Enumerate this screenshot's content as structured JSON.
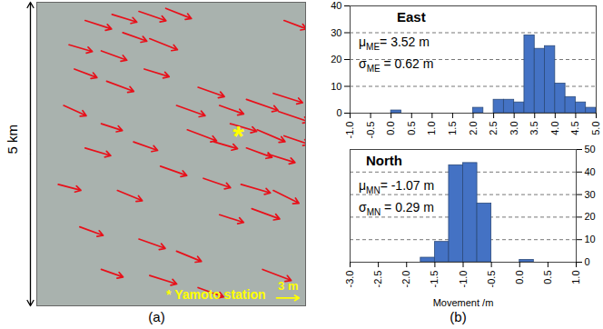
{
  "chart_data": [
    {
      "type": "vector",
      "caption": "(a)",
      "xlim": [
        0,
        5
      ],
      "ylim": [
        0,
        5
      ],
      "tick_labels": false,
      "color": "#e8101a",
      "scale_bar": {
        "label": "5 km",
        "value": 5
      },
      "arrow_key": {
        "label": "3 m",
        "value": 3
      },
      "station": {
        "marker": "*",
        "x": 3.75,
        "y": 2.9,
        "label": "* Yamoto station",
        "color": "#ffff00"
      },
      "x": [
        0.9,
        1.4,
        1.9,
        2.4,
        1.6,
        0.6,
        1.2,
        2.1,
        4.6,
        0.7,
        1.3,
        2.0,
        3.0,
        2.6,
        3.4,
        3.9,
        4.4,
        4.5,
        3.6,
        4.1,
        4.6,
        3.3,
        3.9,
        4.3,
        2.8,
        0.5,
        1.2,
        0.9,
        1.8,
        2.3,
        0.4,
        1.5,
        3.1,
        3.8,
        4.4,
        4.0,
        3.4,
        0.8,
        1.9,
        2.6,
        1.2,
        2.1,
        3.0,
        4.2
      ],
      "y": [
        4.7,
        4.8,
        4.85,
        4.9,
        4.5,
        4.3,
        4.2,
        4.4,
        4.7,
        3.9,
        3.7,
        3.9,
        3.6,
        3.3,
        3.3,
        3.4,
        3.5,
        3.2,
        3.0,
        2.9,
        2.8,
        2.7,
        2.6,
        2.5,
        2.9,
        3.3,
        3.0,
        2.6,
        2.7,
        2.3,
        2.0,
        1.9,
        2.1,
        2.0,
        1.9,
        1.6,
        1.5,
        1.3,
        1.1,
        0.9,
        0.6,
        0.5,
        0.3,
        0.6
      ],
      "east": [
        3.5,
        3.3,
        3.6,
        3.4,
        3.2,
        3.1,
        3.4,
        3.7,
        3.0,
        3.0,
        3.6,
        3.3,
        3.5,
        3.8,
        3.2,
        4.2,
        3.9,
        4.0,
        3.5,
        3.7,
        3.3,
        3.1,
        3.4,
        3.6,
        3.9,
        3.0,
        2.8,
        3.4,
        3.2,
        3.5,
        3.0,
        3.3,
        3.6,
        3.9,
        3.4,
        3.7,
        3.2,
        3.1,
        3.5,
        3.3,
        2.9,
        3.6,
        3.4,
        3.8
      ],
      "north": [
        -1.0,
        -0.9,
        -1.1,
        -1.2,
        -1.0,
        -0.8,
        -1.1,
        -1.3,
        -1.0,
        -1.0,
        -1.2,
        -0.9,
        -1.1,
        -1.2,
        -1.0,
        -1.3,
        -1.1,
        -1.2,
        -0.9,
        -1.4,
        -1.0,
        -0.8,
        -1.1,
        -1.0,
        -1.3,
        -1.2,
        -0.8,
        -0.9,
        -1.0,
        -1.1,
        -0.7,
        -1.2,
        -1.1,
        -1.0,
        -1.5,
        -1.2,
        -0.9,
        -1.0,
        -1.1,
        -1.2,
        -0.9,
        -1.0,
        -1.1,
        -1.3
      ]
    },
    {
      "type": "histogram",
      "title": "East",
      "color": "#4472c4",
      "grid": true,
      "stats": [
        {
          "symbol": "μ",
          "subscript": "ME",
          "text": "= 3.52 m"
        },
        {
          "symbol": "σ",
          "subscript": "ME",
          "text": " = 0.62 m"
        }
      ],
      "bins": [
        -1,
        -0.75,
        -0.5,
        -0.25,
        0,
        0.25,
        0.5,
        0.75,
        1,
        1.25,
        1.5,
        1.75,
        2,
        2.25,
        2.5,
        2.75,
        3,
        3.25,
        3.5,
        3.75,
        4,
        4.25,
        4.5,
        4.75,
        5
      ],
      "values": [
        0,
        0,
        0,
        0,
        1,
        0,
        0,
        0,
        0,
        0,
        0,
        0,
        2,
        0,
        5,
        5,
        4,
        29,
        24,
        25,
        11,
        6,
        4,
        2
      ],
      "xlim": [
        -1,
        5
      ],
      "xticks": [
        {
          "value": -1,
          "label": "-1.0"
        },
        {
          "value": -0.5,
          "label": "-0.5"
        },
        {
          "value": 0,
          "label": "0.0"
        },
        {
          "value": 0.5,
          "label": "0.5"
        },
        {
          "value": 1,
          "label": "1.0"
        },
        {
          "value": 1.5,
          "label": "1.5"
        },
        {
          "value": 2,
          "label": "2.0"
        },
        {
          "value": 2.5,
          "label": "2.5"
        },
        {
          "value": 3,
          "label": "3.0"
        },
        {
          "value": 3.5,
          "label": "3.5"
        },
        {
          "value": 4,
          "label": "4.0"
        },
        {
          "value": 4.5,
          "label": "4.5"
        },
        {
          "value": 5,
          "label": "5.0"
        }
      ],
      "ylim": [
        0,
        40
      ],
      "yticks": [
        0,
        10,
        20,
        30,
        40
      ]
    },
    {
      "type": "histogram",
      "title": "North",
      "caption": "(b)",
      "xlabel": "Movement /m",
      "color": "#4472c4",
      "grid": true,
      "stats": [
        {
          "symbol": "μ",
          "subscript": "MN",
          "text": "= -1.07 m"
        },
        {
          "symbol": "σ",
          "subscript": "MN",
          "text": " = 0.29 m"
        }
      ],
      "bins": [
        -3,
        -2.75,
        -2.5,
        -2.25,
        -2,
        -1.75,
        -1.5,
        -1.25,
        -1,
        -0.75,
        -0.5,
        -0.25,
        0,
        0.25,
        0.5,
        0.75,
        1
      ],
      "values": [
        0,
        0,
        0,
        0,
        0,
        2,
        9,
        43,
        44,
        26,
        0,
        0,
        1,
        0,
        0,
        0
      ],
      "xlim": [
        -3,
        1
      ],
      "xticks": [
        {
          "value": -3,
          "label": "-3.0"
        },
        {
          "value": -2.5,
          "label": "-2.5"
        },
        {
          "value": -2,
          "label": "-2.0"
        },
        {
          "value": -1.5,
          "label": "-1.5"
        },
        {
          "value": -1,
          "label": "-1.0"
        },
        {
          "value": -0.5,
          "label": "-0.5"
        },
        {
          "value": 0,
          "label": "0.0"
        },
        {
          "value": 0.5,
          "label": "0.5"
        },
        {
          "value": 1,
          "label": "1.0"
        }
      ],
      "ylim": [
        0,
        50
      ],
      "yticks": [
        0,
        10,
        20,
        30,
        40,
        50
      ]
    }
  ]
}
